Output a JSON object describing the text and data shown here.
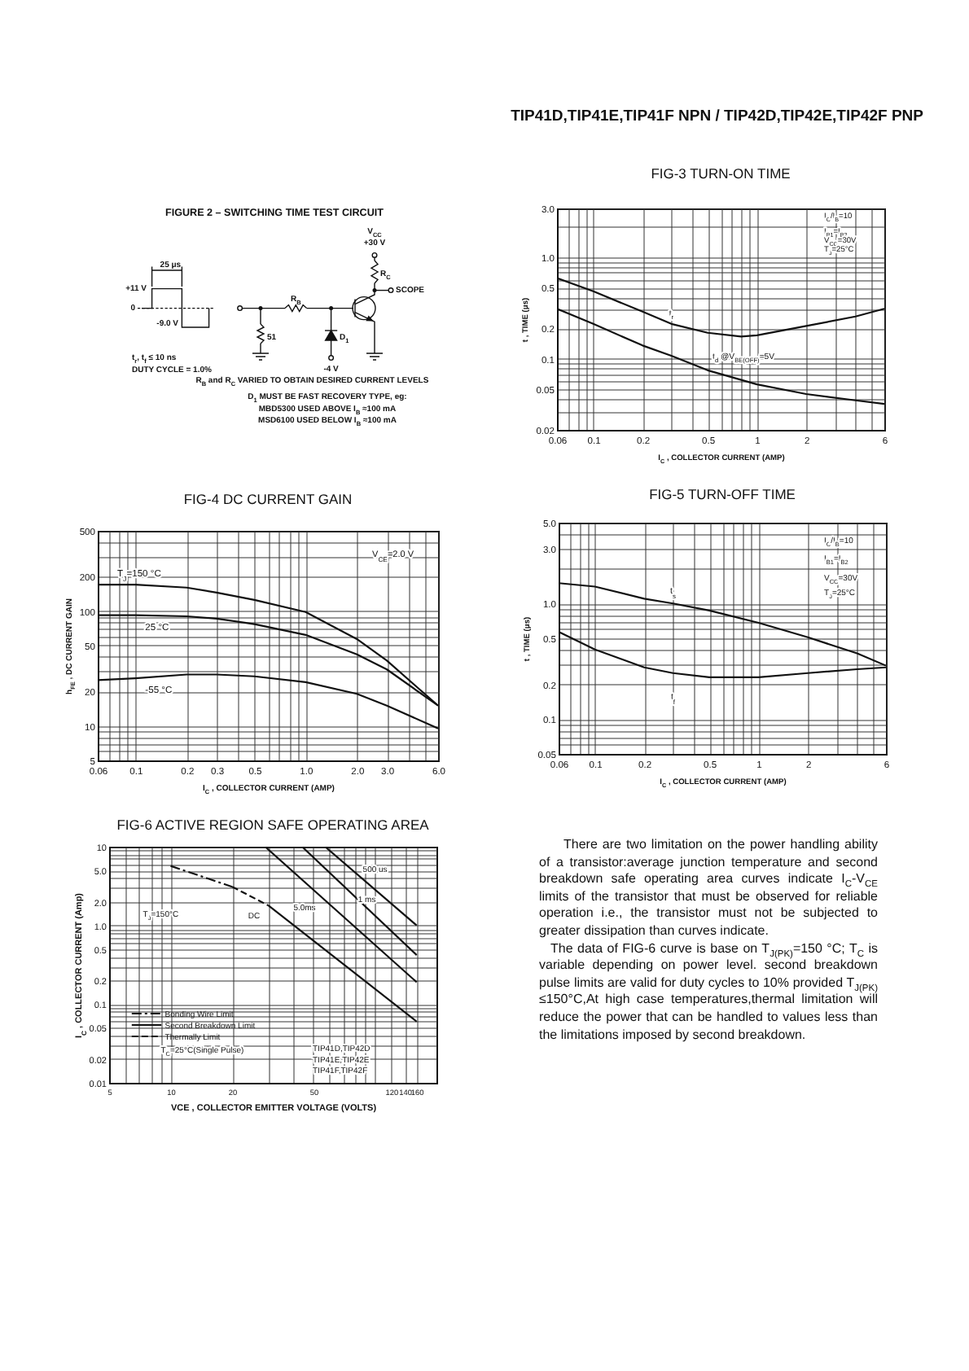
{
  "chart_data": [
    {
      "type": "other",
      "title": "TIP41D,TIP41E,TIP41F NPN / TIP42D,TIP42E,TIP42F PNP"
    },
    {
      "type": "other",
      "title": "FIGURE 2 – SWITCHING TIME TEST CIRCUIT",
      "annotations": [
        "25 μs",
        "+11 V",
        "0",
        "-9.0 V",
        "t$_{r}$, t$_{f}$ ≤ 10 ns",
        "DUTY CYCLE = 1.0%",
        "R$_{B}$",
        "51",
        "D$_{1}$",
        "-4 V",
        "V$_{CC}$",
        "+30 V",
        "R$_{C}$",
        "SCOPE",
        "R$_{B}$ and R$_{C}$ VARIED TO OBTAIN DESIRED CURRENT LEVELS",
        "D$_{1}$ MUST BE FAST RECOVERY TYPE, eg:",
        "MBD5300 USED ABOVE I$_{B}$ ≈100 mA",
        "MSD6100 USED BELOW I$_{B}$ ≈100 mA"
      ]
    },
    {
      "type": "line",
      "title": "FIG-3 TURN-ON TIME",
      "xlabel": "I$_{C}$ , COLLECTOR CURRENT (AMP)",
      "ylabel": "t , TIME (μs)",
      "log": "xy",
      "grid": true,
      "xlim": [
        0.06,
        6
      ],
      "ylim": [
        0.02,
        3
      ],
      "xticks": [
        0.06,
        {
          "value": 0.07,
          "label": null
        },
        {
          "value": 0.08,
          "label": null
        },
        {
          "value": 0.09,
          "label": null
        },
        0.1,
        0.2,
        {
          "value": 0.3,
          "label": null
        },
        {
          "value": 0.4,
          "label": null
        },
        0.5,
        {
          "value": 0.6,
          "label": null
        },
        {
          "value": 0.7,
          "label": null
        },
        {
          "value": 0.8,
          "label": null
        },
        {
          "value": 0.9,
          "label": null
        },
        1,
        2,
        {
          "value": 3,
          "label": null
        },
        {
          "value": 4,
          "label": null
        },
        {
          "value": 5,
          "label": null
        },
        6
      ],
      "yticks": [
        0.02,
        {
          "value": 0.03,
          "label": null
        },
        {
          "value": 0.04,
          "label": null
        },
        0.05,
        {
          "value": 0.06,
          "label": null
        },
        {
          "value": 0.07,
          "label": null
        },
        {
          "value": 0.08,
          "label": null
        },
        {
          "value": 0.09,
          "label": null
        },
        0.1,
        0.2,
        {
          "value": 0.3,
          "label": null
        },
        {
          "value": 0.4,
          "label": null
        },
        0.5,
        {
          "value": 0.6,
          "label": null
        },
        {
          "value": 0.7,
          "label": null
        },
        {
          "value": 0.8,
          "label": null
        },
        {
          "value": 0.9,
          "label": null
        },
        {
          "value": 1,
          "label": "1.0"
        },
        {
          "value": 2,
          "label": null
        },
        {
          "value": 3,
          "label": "3.0"
        }
      ],
      "series": [
        {
          "name": "t$_{r}$",
          "color": "#111111",
          "x": [
            0.06,
            0.1,
            0.2,
            0.3,
            0.5,
            0.8,
            1,
            2,
            4,
            6
          ],
          "values": [
            0.62,
            0.46,
            0.29,
            0.22,
            0.18,
            0.165,
            0.17,
            0.21,
            0.26,
            0.31
          ]
        },
        {
          "name": "t$_{d}$ @V$_{BE(OFF)}$=5V",
          "color": "#111111",
          "x": [
            0.06,
            0.1,
            0.2,
            0.3,
            0.5,
            1,
            2,
            4,
            6
          ],
          "values": [
            0.31,
            0.22,
            0.135,
            0.107,
            0.077,
            0.056,
            0.045,
            0.039,
            0.036
          ]
        }
      ],
      "annotations": [
        "I$_{C}$/I$_{B}$=10",
        "I$_{B1}$=I$_{B2}$",
        "V$_{CC}$=30V",
        "T$_{J}$=25°C"
      ]
    },
    {
      "type": "line",
      "title": "FIG-4 DC CURRENT GAIN",
      "xlabel": "I$_{C}$ , COLLECTOR CURRENT (AMP)",
      "ylabel": "h$_{FE}$ , DC CURRENT GAIN",
      "log": "xy",
      "grid": true,
      "xlim": [
        0.06,
        6
      ],
      "ylim": [
        5,
        500
      ],
      "xticks": [
        0.06,
        {
          "value": 0.07,
          "label": null
        },
        {
          "value": 0.08,
          "label": null
        },
        {
          "value": 0.09,
          "label": null
        },
        0.1,
        0.2,
        0.3,
        {
          "value": 0.4,
          "label": null
        },
        0.5,
        {
          "value": 0.6,
          "label": null
        },
        {
          "value": 0.7,
          "label": null
        },
        {
          "value": 0.8,
          "label": null
        },
        {
          "value": 0.9,
          "label": null
        },
        {
          "value": 1,
          "label": "1.0"
        },
        {
          "value": 2,
          "label": "2.0"
        },
        {
          "value": 3,
          "label": "3.0"
        },
        {
          "value": 4,
          "label": null
        },
        {
          "value": 5,
          "label": null
        },
        {
          "value": 6,
          "label": "6.0"
        }
      ],
      "yticks": [
        5,
        {
          "value": 6,
          "label": null
        },
        {
          "value": 7,
          "label": null
        },
        {
          "value": 8,
          "label": null
        },
        {
          "value": 9,
          "label": null
        },
        10,
        20,
        {
          "value": 30,
          "label": null
        },
        {
          "value": 40,
          "label": null
        },
        50,
        {
          "value": 60,
          "label": null
        },
        {
          "value": 70,
          "label": null
        },
        {
          "value": 80,
          "label": null
        },
        {
          "value": 90,
          "label": null
        },
        100,
        200,
        {
          "value": 300,
          "label": null
        },
        {
          "value": 400,
          "label": null
        },
        500
      ],
      "x": [
        0.06,
        0.1,
        0.2,
        0.3,
        0.5,
        1,
        2,
        3,
        6
      ],
      "series": [
        {
          "name": "T$_{J}$=150 °C",
          "color": "#111111",
          "values": [
            170,
            170,
            160,
            145,
            125,
            98,
            57,
            37,
            15
          ]
        },
        {
          "name": "25 °C",
          "color": "#111111",
          "values": [
            92,
            92,
            90,
            86,
            77,
            62,
            42,
            31,
            15
          ]
        },
        {
          "name": "-55 °C",
          "color": "#111111",
          "values": [
            25,
            26,
            28,
            28,
            27,
            24,
            19,
            15,
            9.5
          ]
        }
      ],
      "annotations": [
        "V$_{CE}$=2.0 V"
      ]
    },
    {
      "type": "line",
      "title": "FIG-5 TURN-OFF TIME",
      "xlabel": "I$_{C}$ , COLLECTOR CURRENT (AMP)",
      "ylabel": "t , TIME (μs)",
      "log": "xy",
      "grid": true,
      "xlim": [
        0.06,
        6
      ],
      "ylim": [
        0.05,
        5
      ],
      "xticks": [
        0.06,
        {
          "value": 0.07,
          "label": null
        },
        {
          "value": 0.08,
          "label": null
        },
        {
          "value": 0.09,
          "label": null
        },
        0.1,
        0.2,
        {
          "value": 0.3,
          "label": null
        },
        {
          "value": 0.4,
          "label": null
        },
        0.5,
        {
          "value": 0.6,
          "label": null
        },
        {
          "value": 0.7,
          "label": null
        },
        {
          "value": 0.8,
          "label": null
        },
        {
          "value": 0.9,
          "label": null
        },
        1,
        2,
        {
          "value": 3,
          "label": null
        },
        {
          "value": 4,
          "label": null
        },
        {
          "value": 5,
          "label": null
        },
        6
      ],
      "yticks": [
        0.05,
        {
          "value": 0.06,
          "label": null
        },
        {
          "value": 0.07,
          "label": null
        },
        {
          "value": 0.08,
          "label": null
        },
        {
          "value": 0.09,
          "label": null
        },
        0.1,
        0.2,
        {
          "value": 0.3,
          "label": null
        },
        {
          "value": 0.4,
          "label": null
        },
        0.5,
        {
          "value": 0.6,
          "label": null
        },
        {
          "value": 0.7,
          "label": null
        },
        {
          "value": 0.8,
          "label": null
        },
        {
          "value": 0.9,
          "label": null
        },
        {
          "value": 1,
          "label": "1.0"
        },
        {
          "value": 2,
          "label": null
        },
        {
          "value": 3,
          "label": "3.0"
        },
        {
          "value": 4,
          "label": null
        },
        {
          "value": 5,
          "label": "5.0"
        }
      ],
      "x": [
        0.06,
        0.1,
        0.2,
        0.3,
        0.5,
        1,
        2,
        4,
        6
      ],
      "series": [
        {
          "name": "t$_{s}$",
          "color": "#111111",
          "values": [
            1.5,
            1.4,
            1.1,
            1.0,
            0.87,
            0.68,
            0.51,
            0.37,
            0.29
          ]
        },
        {
          "name": "t$_{f}$",
          "color": "#111111",
          "values": [
            0.57,
            0.4,
            0.28,
            0.25,
            0.23,
            0.23,
            0.25,
            0.27,
            0.28
          ]
        }
      ],
      "annotations": [
        "I$_{C}$/I$_{B}$=10",
        "I$_{B1}$=I$_{B2}$",
        "V$_{CC}$=30V",
        "T$_{J}$=25°C"
      ]
    },
    {
      "type": "line",
      "title": "FIG-6 ACTIVE REGION SAFE OPERATING AREA",
      "xlabel": "VCE , COLLECTOR EMITTER VOLTAGE (VOLTS)",
      "ylabel": "I$_{C}$ , COLLECTOR CURRENT (Amp)",
      "log": "xy",
      "grid": true,
      "legend": "bottom left",
      "xlim": [
        5,
        200
      ],
      "ylim": [
        0.01,
        10
      ],
      "xticks": [
        5,
        {
          "value": 6,
          "label": null
        },
        {
          "value": 7,
          "label": null
        },
        {
          "value": 8,
          "label": null
        },
        {
          "value": 9,
          "label": null
        },
        10,
        20,
        {
          "value": 30,
          "label": null
        },
        {
          "value": 40,
          "label": null
        },
        50,
        {
          "value": 60,
          "label": null
        },
        {
          "value": 70,
          "label": null
        },
        {
          "value": 80,
          "label": null
        },
        {
          "value": 90,
          "label": null
        },
        {
          "value": 100,
          "label": null
        },
        120,
        140,
        160
      ],
      "yticks": [
        0.01,
        0.02,
        {
          "value": 0.03,
          "label": null
        },
        {
          "value": 0.04,
          "label": null
        },
        0.05,
        {
          "value": 0.06,
          "label": null
        },
        {
          "value": 0.07,
          "label": null
        },
        {
          "value": 0.08,
          "label": null
        },
        {
          "value": 0.09,
          "label": null
        },
        0.1,
        0.2,
        {
          "value": 0.3,
          "label": null
        },
        {
          "value": 0.4,
          "label": null
        },
        0.5,
        {
          "value": 0.6,
          "label": null
        },
        {
          "value": 0.7,
          "label": null
        },
        {
          "value": 0.8,
          "label": null
        },
        {
          "value": 0.9,
          "label": null
        },
        {
          "value": 1,
          "label": "1.0"
        },
        {
          "value": 2,
          "label": "2.0"
        },
        {
          "value": 3,
          "label": null
        },
        {
          "value": 4,
          "label": null
        },
        {
          "value": 5,
          "label": "5.0"
        },
        {
          "value": 6,
          "label": null
        },
        {
          "value": 7,
          "label": null
        },
        {
          "value": 8,
          "label": null
        },
        {
          "value": 9,
          "label": null
        },
        10
      ],
      "series": [
        {
          "name": "Bonding Wire Limit",
          "color": "#111111",
          "line_style": "dashdot",
          "x": [
            10,
            20
          ],
          "values": [
            5.7,
            3.1
          ]
        },
        {
          "name": "Second Breakdown Limit",
          "color": "#111111",
          "line_style": "solid",
          "x": [
            30,
            160
          ],
          "values": [
            1.8,
            0.06
          ]
        },
        {
          "name": "Thermally Limit",
          "color": "#111111",
          "line_style": "dashed",
          "x": [
            20,
            30
          ],
          "values": [
            3.1,
            1.8
          ]
        },
        {
          "color": "#111111",
          "line_style": "solid",
          "x": [
            29,
            160
          ],
          "values": [
            10,
            0.19
          ]
        },
        {
          "color": "#111111",
          "line_style": "solid",
          "x": [
            44,
            160
          ],
          "values": [
            10,
            0.42
          ]
        },
        {
          "color": "#111111",
          "line_style": "solid",
          "x": [
            57,
            160
          ],
          "values": [
            10,
            1.0
          ]
        }
      ],
      "annotations": [
        "500 us",
        "1 ms",
        "5.0ms",
        "DC",
        "T$_{J}$=150°C",
        "T$_{C}$=25°C(Single Pulse)",
        "TIP41D,TIP42D",
        "TIP41E,TIP42E",
        "TIP41F,TIP42F"
      ]
    },
    {
      "type": "other",
      "annotations": [
        "There are two limitation on the power handling ability of a transistor:average junction temperature and second breakdown safe operating area curves indicate I$_{C}$-V$_{CE}$ limits of the transistor that must be observed for reliable operation i.e., the transistor must not be subjected to greater dissipation than curves indicate.",
        "The data of FIG-6 curve is base on T$_{J(PK)}$=150 °C; T$_{C}$ is variable depending on power level. second breakdown pulse limits are valid for duty cycles to 10% provided T$_{J(PK)}$ ≤150°C,At high case temperatures,thermal limitation will reduce the power that can be handled to values less than the limitations imposed by second breakdown."
      ]
    }
  ]
}
